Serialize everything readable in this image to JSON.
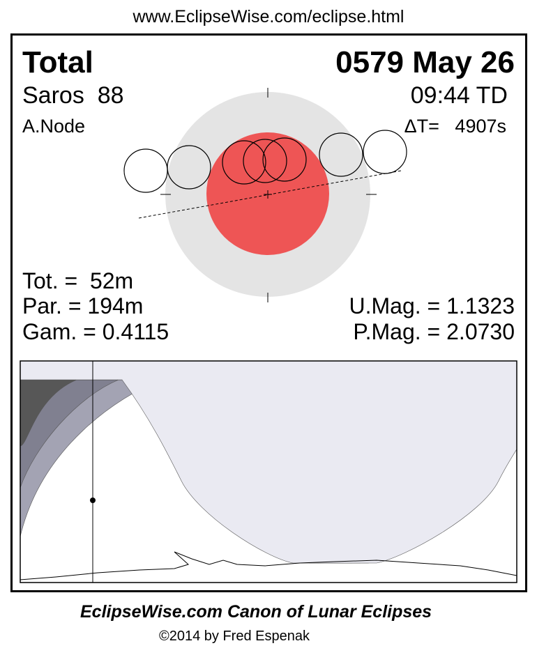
{
  "header": {
    "url": "www.EclipseWise.com/eclipse.html"
  },
  "eclipse": {
    "type": "Total",
    "date": "0579 May 26",
    "saros": "Saros  88",
    "time": "09:44 TD",
    "node": "A.Node",
    "delta_t": "ΔT=   4907s",
    "totality": "Tot. =  52m",
    "partial": "Par. = 194m",
    "gamma": "Gam. = 0.4115",
    "umbral_mag": "U.Mag. = 1.1323",
    "penumbral_mag": "P.Mag. = 2.0730"
  },
  "colors": {
    "umbra": "#ee5555",
    "penumbra": "#e4e4e4",
    "night": "#575757"
  },
  "footer": {
    "title": "EclipseWise.com Canon of Lunar Eclipses",
    "copyright": "©2014 by Fred Espenak"
  }
}
